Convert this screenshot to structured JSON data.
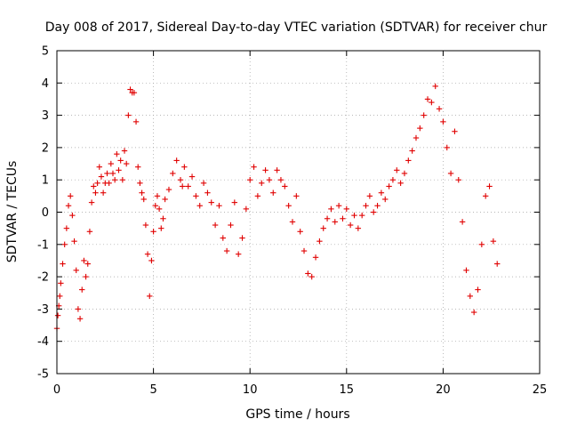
{
  "chart_data": {
    "type": "scatter",
    "title": "Day 008 of 2017, Sidereal Day-to-day VTEC variation (SDTVAR) for receiver chur",
    "xlabel": "GPS time / hours",
    "ylabel": "SDTVAR / TECUs",
    "xlim": [
      0,
      25
    ],
    "ylim": [
      -5,
      5
    ],
    "xticks": [
      0,
      5,
      10,
      15,
      20,
      25
    ],
    "yticks": [
      -5,
      -4,
      -3,
      -2,
      -1,
      0,
      1,
      2,
      3,
      4,
      5
    ],
    "xtick_labels": [
      "0",
      "5",
      "10",
      "15",
      "20",
      "25"
    ],
    "ytick_labels": [
      "-5",
      "-4",
      "-3",
      "-2",
      "-1",
      "0",
      "1",
      "2",
      "3",
      "4",
      "5"
    ],
    "grid": true,
    "marker": "+",
    "series": [
      {
        "name": "SDTVAR",
        "color": "#e00000",
        "x": [
          0.0,
          0.05,
          0.1,
          0.15,
          0.2,
          0.3,
          0.4,
          0.5,
          0.6,
          0.7,
          0.8,
          0.9,
          1.0,
          1.1,
          1.2,
          1.3,
          1.4,
          1.5,
          1.6,
          1.7,
          1.8,
          1.9,
          2.0,
          2.1,
          2.2,
          2.3,
          2.4,
          2.5,
          2.6,
          2.7,
          2.8,
          2.9,
          3.0,
          3.1,
          3.2,
          3.3,
          3.4,
          3.5,
          3.6,
          3.7,
          3.8,
          3.9,
          4.0,
          4.1,
          4.2,
          4.3,
          4.4,
          4.5,
          4.6,
          4.7,
          4.8,
          4.9,
          5.0,
          5.1,
          5.2,
          5.3,
          5.4,
          5.5,
          5.6,
          5.8,
          6.0,
          6.2,
          6.4,
          6.5,
          6.6,
          6.8,
          7.0,
          7.2,
          7.4,
          7.6,
          7.8,
          8.0,
          8.2,
          8.4,
          8.6,
          8.8,
          9.0,
          9.2,
          9.4,
          9.6,
          9.8,
          10.0,
          10.2,
          10.4,
          10.6,
          10.8,
          11.0,
          11.2,
          11.4,
          11.6,
          11.8,
          12.0,
          12.2,
          12.4,
          12.6,
          12.8,
          13.0,
          13.2,
          13.4,
          13.6,
          13.8,
          14.0,
          14.2,
          14.4,
          14.6,
          14.8,
          15.0,
          15.2,
          15.4,
          15.6,
          15.8,
          16.0,
          16.2,
          16.4,
          16.6,
          16.8,
          17.0,
          17.2,
          17.4,
          17.6,
          17.8,
          18.0,
          18.2,
          18.4,
          18.6,
          18.8,
          19.0,
          19.2,
          19.4,
          19.6,
          19.8,
          20.0,
          20.2,
          20.4,
          20.6,
          20.8,
          21.0,
          21.2,
          21.4,
          21.6,
          21.8,
          22.0,
          22.2,
          22.4,
          22.6,
          22.8
        ],
        "y": [
          -3.6,
          -3.2,
          -2.9,
          -2.6,
          -2.2,
          -1.6,
          -1.0,
          -0.5,
          0.2,
          0.5,
          -0.1,
          -0.9,
          -1.8,
          -3.0,
          -3.3,
          -2.4,
          -1.5,
          -2.0,
          -1.6,
          -0.6,
          0.3,
          0.8,
          0.6,
          0.9,
          1.4,
          1.1,
          0.6,
          0.9,
          1.2,
          0.9,
          1.5,
          1.2,
          1.0,
          1.8,
          1.3,
          1.6,
          1.0,
          1.9,
          1.5,
          3.0,
          3.8,
          3.7,
          3.7,
          2.8,
          1.4,
          0.9,
          0.6,
          0.4,
          -0.4,
          -1.3,
          -2.6,
          -1.5,
          -0.6,
          0.2,
          0.5,
          0.1,
          -0.5,
          -0.2,
          0.4,
          0.7,
          1.2,
          1.6,
          1.0,
          0.8,
          1.4,
          0.8,
          1.1,
          0.5,
          0.2,
          0.9,
          0.6,
          0.3,
          -0.4,
          0.2,
          -0.8,
          -1.2,
          -0.4,
          0.3,
          -1.3,
          -0.8,
          0.1,
          1.0,
          1.4,
          0.5,
          0.9,
          1.3,
          1.0,
          0.6,
          1.3,
          1.0,
          0.8,
          0.2,
          -0.3,
          0.5,
          -0.6,
          -1.2,
          -1.9,
          -2.0,
          -1.4,
          -0.9,
          -0.5,
          -0.2,
          0.1,
          -0.3,
          0.2,
          -0.2,
          0.1,
          -0.4,
          -0.1,
          -0.5,
          -0.1,
          0.2,
          0.5,
          0.0,
          0.2,
          0.6,
          0.4,
          0.8,
          1.0,
          1.3,
          0.9,
          1.2,
          1.6,
          1.9,
          2.3,
          2.6,
          3.0,
          3.5,
          3.4,
          3.9,
          3.2,
          2.8,
          2.0,
          1.2,
          2.5,
          1.0,
          -0.3,
          -1.8,
          -2.6,
          -3.1,
          -2.4,
          -1.0,
          0.5,
          0.8,
          -0.9,
          -1.6
        ]
      }
    ]
  }
}
